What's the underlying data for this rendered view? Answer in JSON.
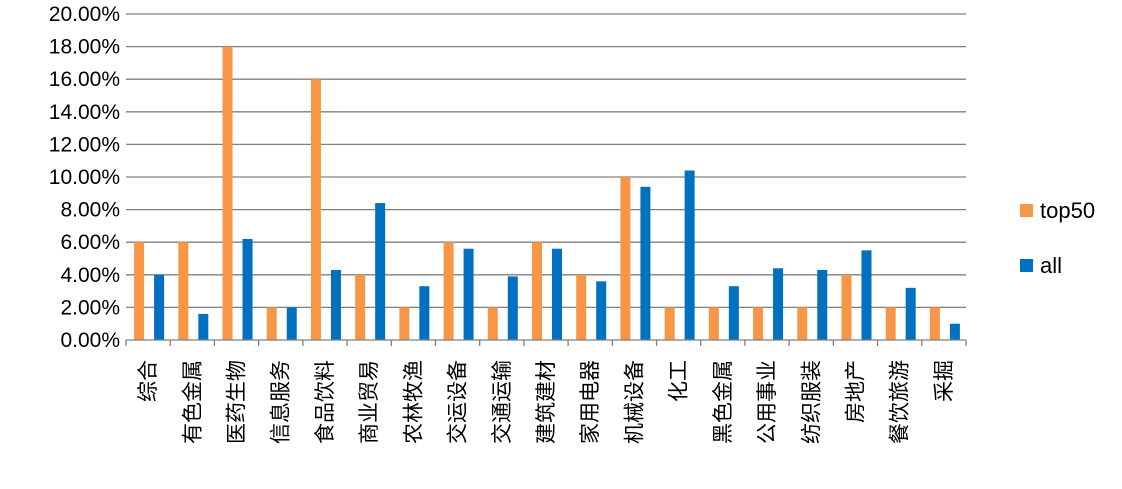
{
  "chart_data": {
    "type": "bar",
    "categories": [
      "综合",
      "有色金属",
      "医药生物",
      "信息服务",
      "食品饮料",
      "商业贸易",
      "农林牧渔",
      "交运设备",
      "交通运输",
      "建筑建材",
      "家用电器",
      "机械设备",
      "化工",
      "黑色金属",
      "公用事业",
      "纺织服装",
      "房地产",
      "餐饮旅游",
      "采掘"
    ],
    "series": [
      {
        "name": "top50",
        "color": "#F79646",
        "values": [
          6.0,
          6.0,
          18.0,
          2.0,
          16.0,
          4.0,
          2.0,
          6.0,
          2.0,
          6.0,
          4.0,
          10.0,
          2.0,
          2.0,
          2.0,
          2.0,
          4.0,
          2.0,
          2.0
        ]
      },
      {
        "name": "all",
        "color": "#0070C0",
        "values": [
          4.0,
          1.6,
          6.2,
          2.0,
          4.3,
          8.4,
          3.3,
          5.6,
          3.9,
          5.6,
          3.6,
          9.4,
          10.4,
          3.3,
          4.4,
          4.3,
          5.5,
          3.2,
          1.0
        ]
      }
    ],
    "yticks": [
      "0.00%",
      "2.00%",
      "4.00%",
      "6.00%",
      "8.00%",
      "10.00%",
      "12.00%",
      "14.00%",
      "16.00%",
      "18.00%",
      "20.00%"
    ],
    "ylim": [
      0,
      20
    ],
    "grid": true,
    "legend_position": "right",
    "gridline_color": "#7f7f7f"
  }
}
